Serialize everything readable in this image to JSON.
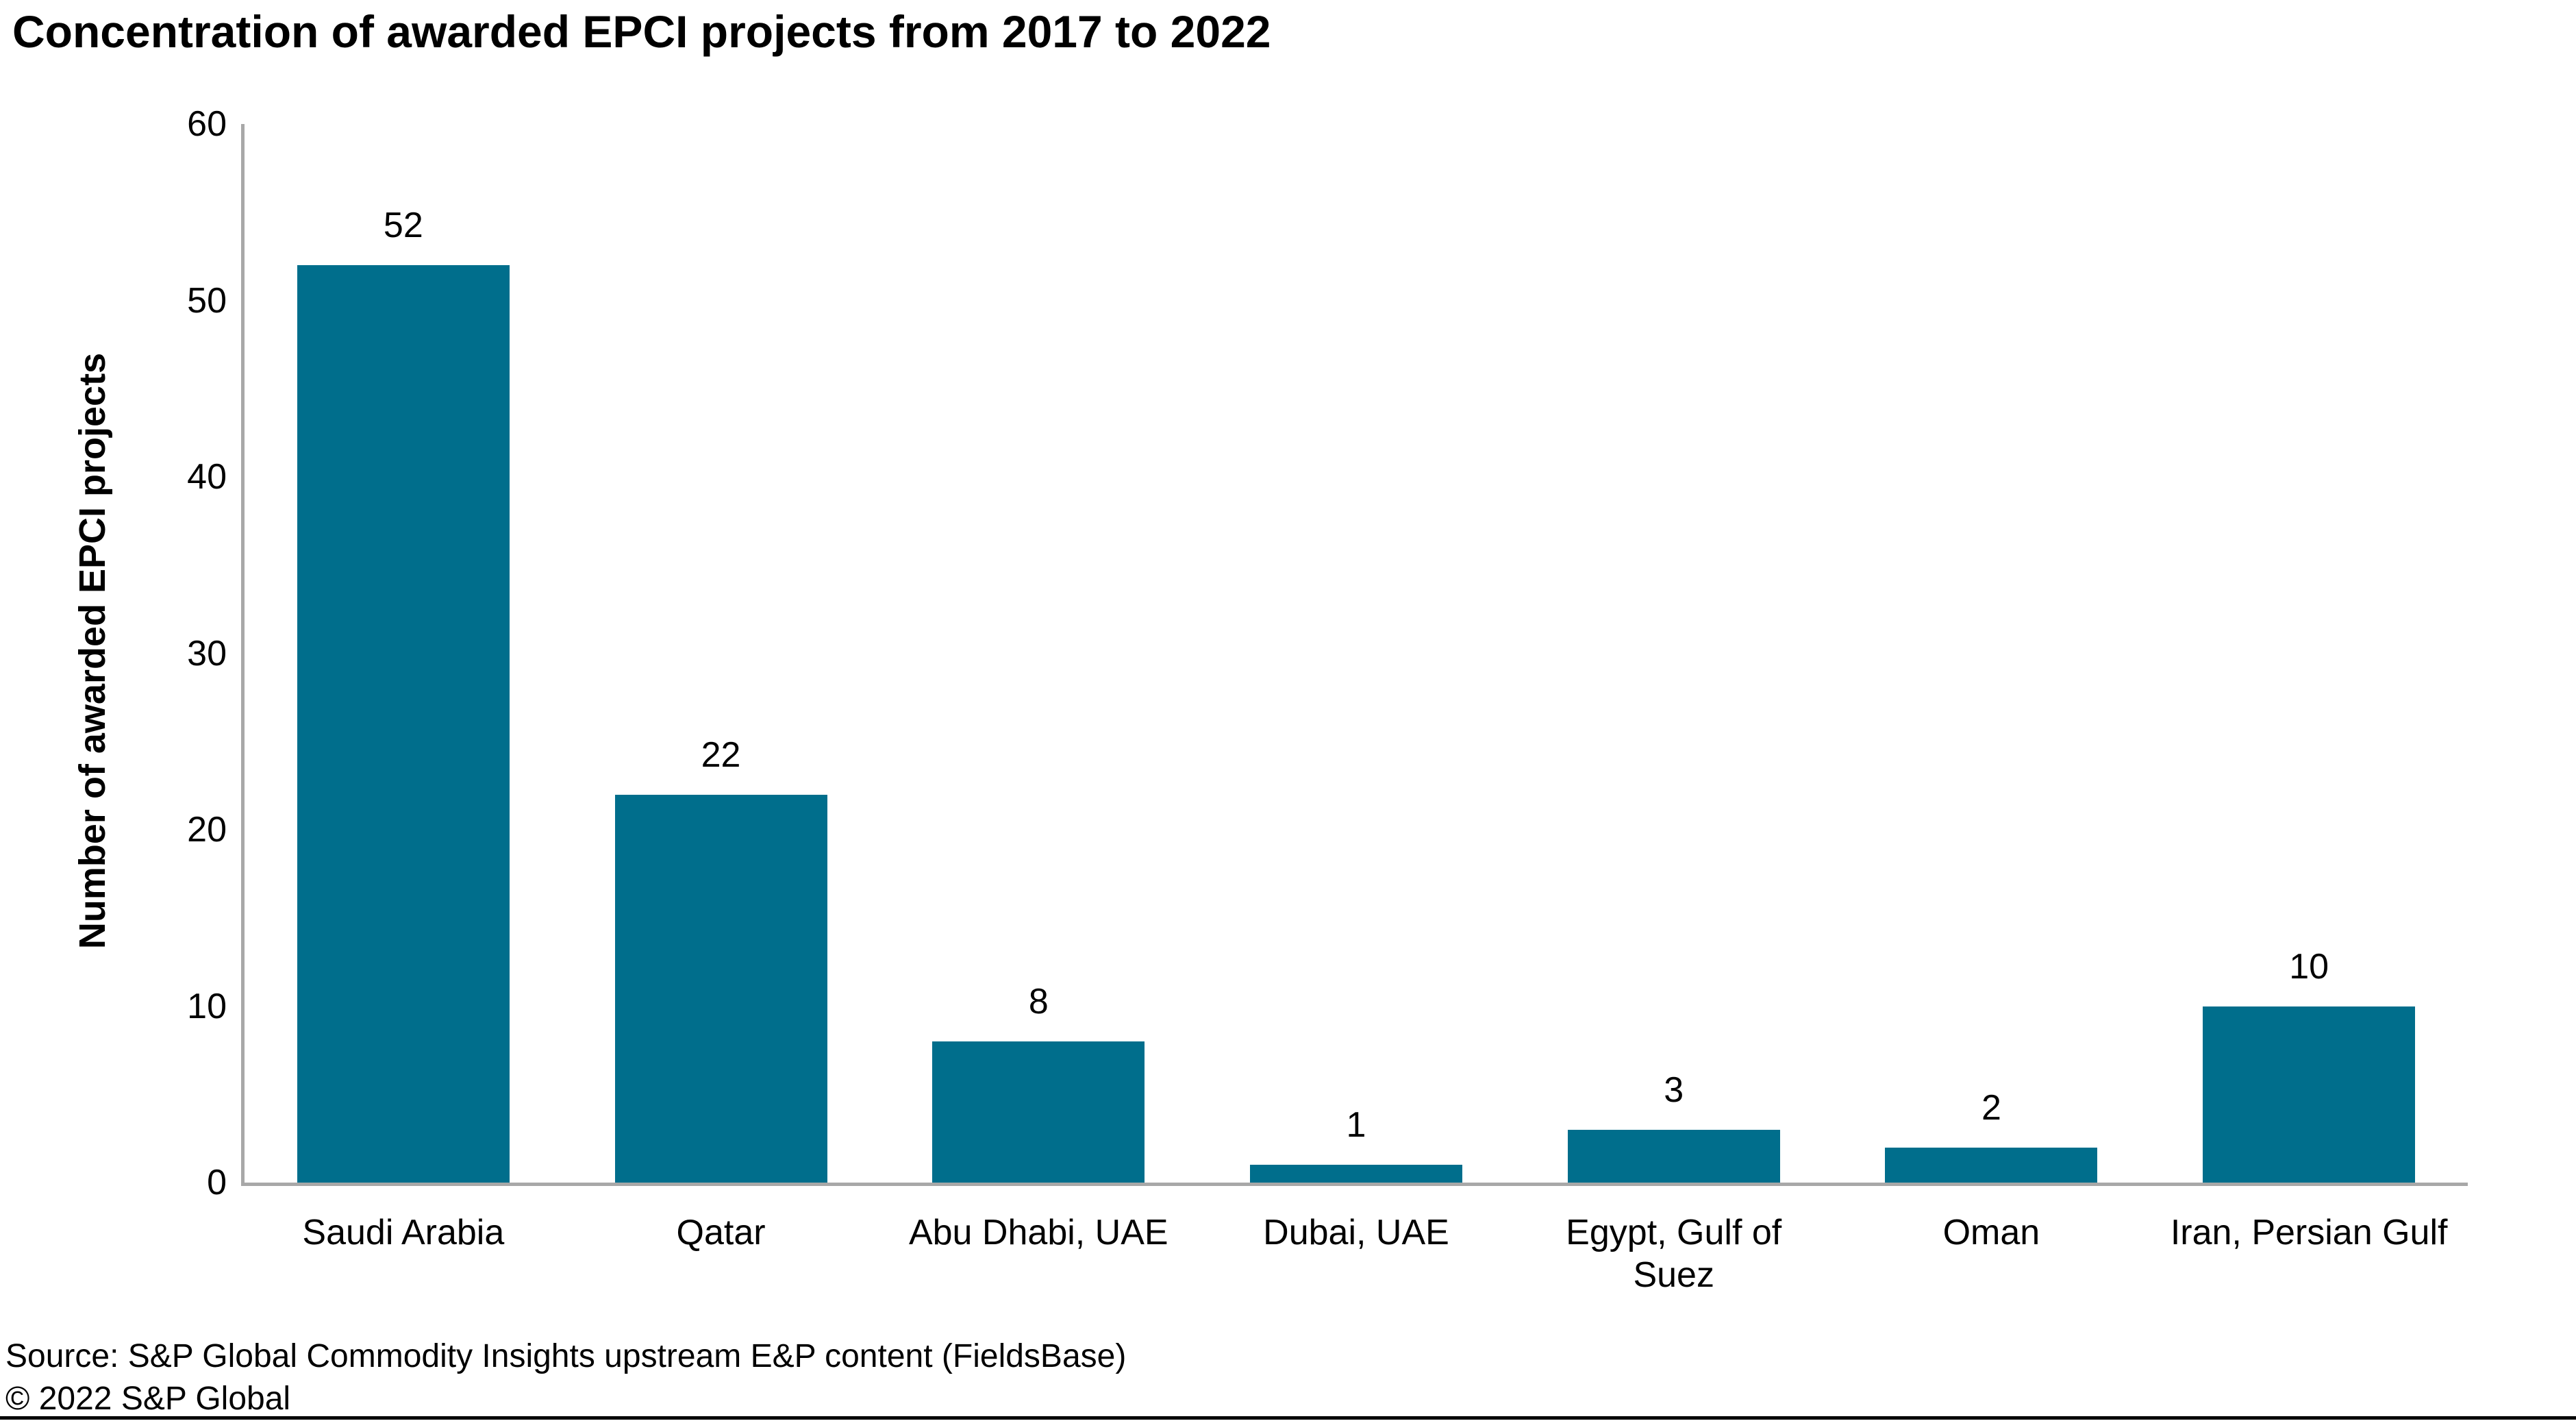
{
  "title": "Concentration of awarded EPCI projects from 2017 to 2022",
  "chart_data": {
    "type": "bar",
    "title": "Concentration of awarded EPCI projects from 2017 to 2022",
    "categories": [
      "Saudi Arabia",
      "Qatar",
      "Abu Dhabi, UAE",
      "Dubai, UAE",
      "Egypt, Gulf of\nSuez",
      "Oman",
      "Iran, Persian Gulf"
    ],
    "values": [
      52,
      22,
      8,
      1,
      3,
      2,
      10
    ],
    "data_labels": [
      "52",
      "22",
      "8",
      "1",
      "3",
      "2",
      "10"
    ],
    "xlabel": "",
    "ylabel": "Number of awarded EPCI projects",
    "ylim": [
      0,
      60
    ],
    "yticks": [
      0,
      10,
      20,
      30,
      40,
      50,
      60
    ],
    "grid": false,
    "legend": "none",
    "bar_color": "#006E8C",
    "axis_color": "#A8A8A8",
    "text_color": "#000000"
  },
  "footer": {
    "source": "Source: S&P Global Commodity Insights upstream E&P content (FieldsBase)",
    "copyright": "© 2022 S&P Global"
  }
}
